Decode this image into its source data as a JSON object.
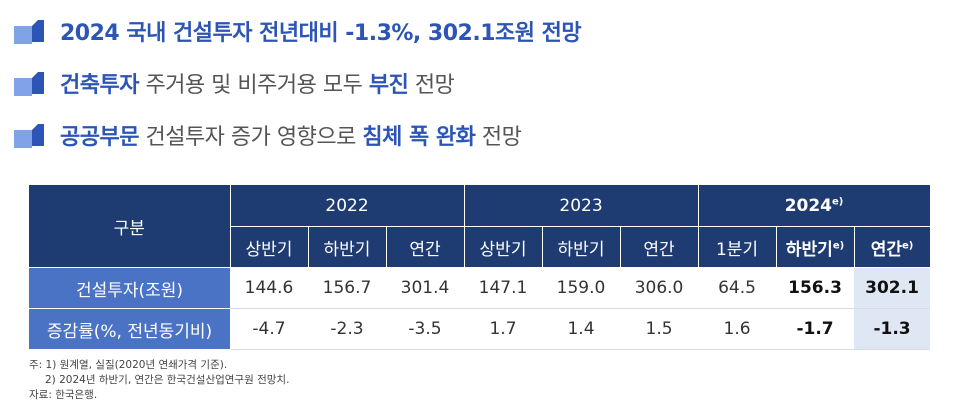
{
  "bullets": [
    {
      "parts": [
        {
          "text": "2024 국내 건설투자 전년대비 -1.3%, 302.1조원 전망",
          "hl": true
        }
      ]
    },
    {
      "parts": [
        {
          "text": "건축투자",
          "hl": true
        },
        {
          "text": " 주거용 및 비주거용 모두 ",
          "hl": false
        },
        {
          "text": "부진",
          "hl": true
        },
        {
          "text": " 전망",
          "hl": false
        }
      ]
    },
    {
      "parts": [
        {
          "text": "공공부문",
          "hl": true
        },
        {
          "text": " 건설투자 증가 영향으로 ",
          "hl": false
        },
        {
          "text": "침체 폭 완화",
          "hl": true
        },
        {
          "text": " 전망",
          "hl": false
        }
      ]
    }
  ],
  "table": {
    "corner": "구분",
    "years": [
      {
        "label": "2022",
        "suffix": ""
      },
      {
        "label": "2023",
        "suffix": ""
      },
      {
        "label": "2024",
        "suffix": "e)"
      }
    ],
    "sub": [
      {
        "label": "상반기",
        "suffix": ""
      },
      {
        "label": "하반기",
        "suffix": ""
      },
      {
        "label": "연간",
        "suffix": ""
      },
      {
        "label": "상반기",
        "suffix": ""
      },
      {
        "label": "하반기",
        "suffix": ""
      },
      {
        "label": "연간",
        "suffix": ""
      },
      {
        "label": "1분기",
        "suffix": ""
      },
      {
        "label": "하반기",
        "suffix": "e)"
      },
      {
        "label": "연간",
        "suffix": "e)"
      }
    ],
    "rows": [
      {
        "label": "건설투자(조원)",
        "values": [
          "144.6",
          "156.7",
          "301.4",
          "147.1",
          "159.0",
          "306.0",
          "64.5",
          "156.3",
          "302.1"
        ]
      },
      {
        "label": "증감률(%, 전년동기비)",
        "values": [
          "-4.7",
          "-2.3",
          "-3.5",
          "1.7",
          "1.4",
          "1.5",
          "1.6",
          "-1.7",
          "-1.3"
        ]
      }
    ]
  },
  "notes": {
    "note1": "주: 1) 원계열, 실질(2020년 연쇄가격 기준).",
    "note2": "2) 2024년 하반기, 연간은 한국건설산업연구원 전망치.",
    "source": "자료: 한국은행."
  },
  "colors": {
    "header_dark": "#1e3c72",
    "row_label": "#4a73c6",
    "highlight_text": "#2d55b5",
    "highlight_col": "#dfe7f5"
  }
}
